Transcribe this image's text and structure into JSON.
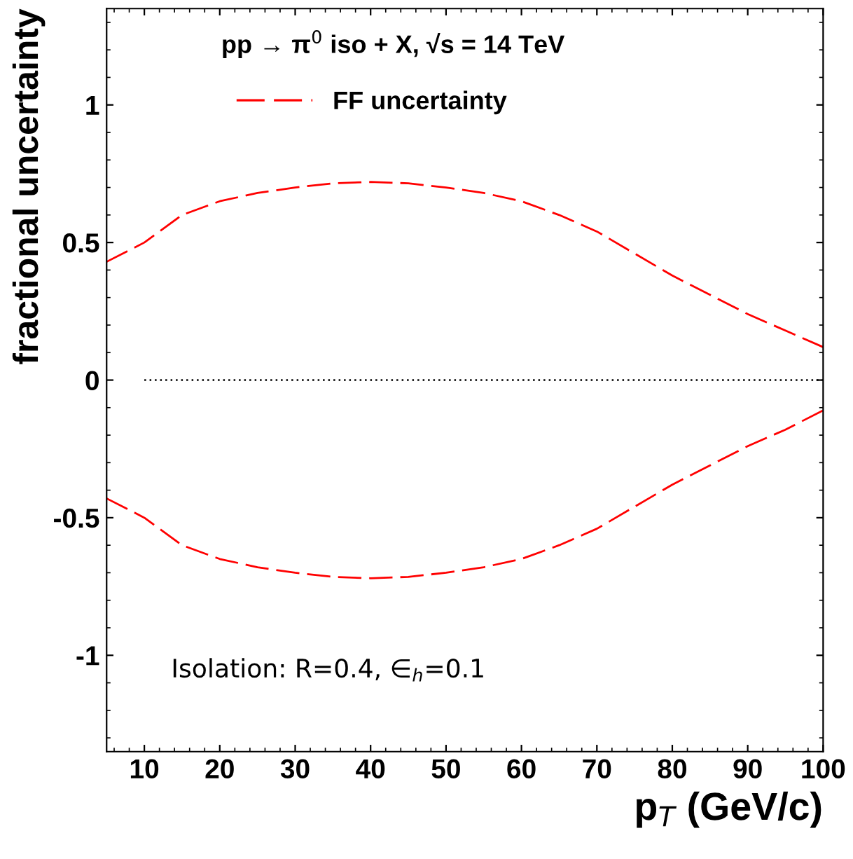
{
  "chart_data": {
    "type": "line",
    "title": "pp → π$^{0}$ iso + X, √s = 14 TeV",
    "xlabel": "p$_{T}$ (GeV/c)",
    "ylabel": "fractional uncertainty",
    "annotations": [
      "Isolation: R=0.4, ∈$_{h}$=0.1"
    ],
    "x": [
      5,
      10,
      15,
      20,
      25,
      30,
      35,
      40,
      45,
      50,
      55,
      60,
      65,
      70,
      75,
      80,
      85,
      90,
      95,
      100
    ],
    "series": [
      {
        "name": "FF uncertainty",
        "color": "#ff0000",
        "line_style": "dashed",
        "values": [
          0.43,
          0.5,
          0.6,
          0.65,
          0.68,
          0.7,
          0.715,
          0.72,
          0.715,
          0.7,
          0.68,
          0.65,
          0.6,
          0.54,
          0.46,
          0.38,
          0.31,
          0.24,
          0.18,
          0.12
        ]
      },
      {
        "color": "#ff0000",
        "line_style": "dashed",
        "values": [
          -0.43,
          -0.5,
          -0.6,
          -0.65,
          -0.68,
          -0.7,
          -0.715,
          -0.72,
          -0.715,
          -0.7,
          -0.68,
          -0.65,
          -0.6,
          -0.54,
          -0.46,
          -0.38,
          -0.31,
          -0.24,
          -0.18,
          -0.11
        ]
      },
      {
        "color": "#000000",
        "line_style": "dotted",
        "x": [
          10,
          100
        ],
        "values": [
          0,
          0
        ]
      }
    ],
    "xlim": [
      5,
      100
    ],
    "xticks": [
      10,
      20,
      30,
      40,
      50,
      60,
      70,
      80,
      90,
      100
    ],
    "ylim": [
      -1.35,
      1.35
    ],
    "yticks": [
      -1,
      -0.5,
      0,
      0.5,
      1
    ],
    "grid": false,
    "legend": "top"
  }
}
